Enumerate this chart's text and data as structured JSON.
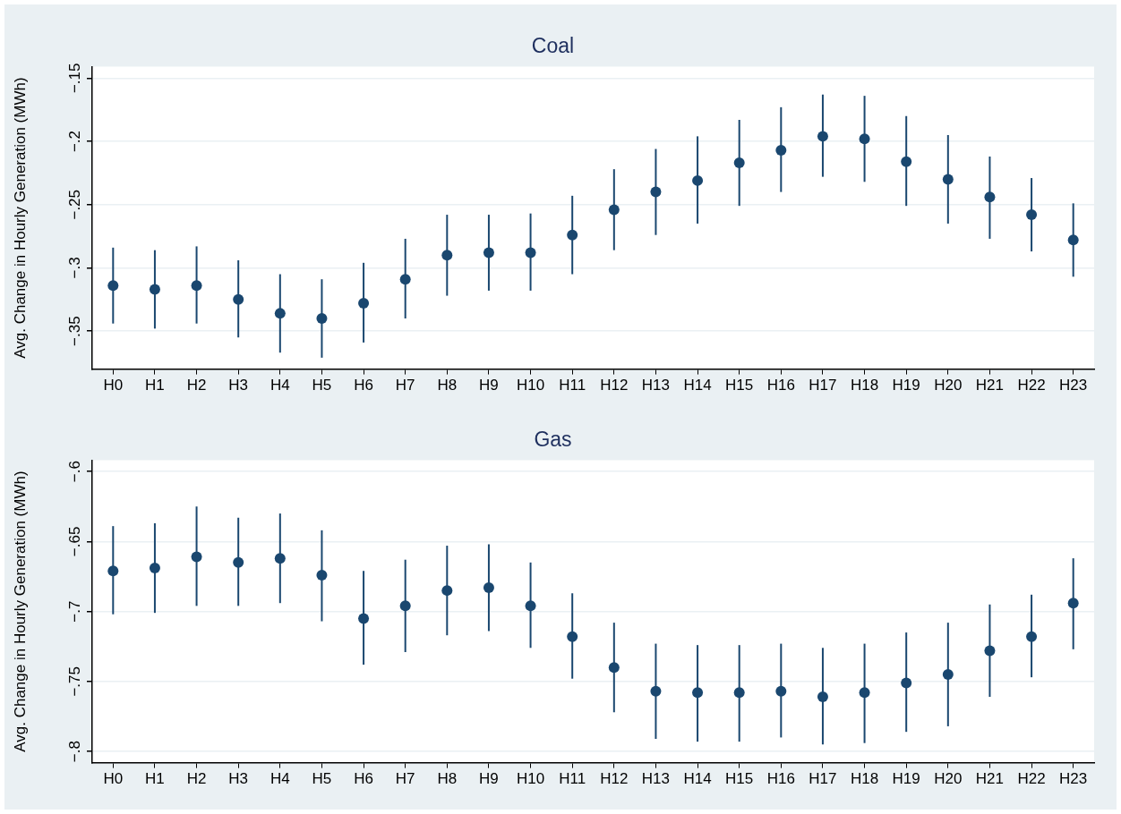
{
  "chart_data": [
    {
      "type": "scatter",
      "title": "Coal",
      "ylabel": "Avg. Change in Hourly Generation (MWh)",
      "categories": [
        "H0",
        "H1",
        "H2",
        "H3",
        "H4",
        "H5",
        "H6",
        "H7",
        "H8",
        "H9",
        "H10",
        "H11",
        "H12",
        "H13",
        "H14",
        "H15",
        "H16",
        "H17",
        "H18",
        "H19",
        "H20",
        "H21",
        "H22",
        "H23"
      ],
      "values": [
        -0.314,
        -0.317,
        -0.314,
        -0.325,
        -0.336,
        -0.34,
        -0.328,
        -0.309,
        -0.29,
        -0.288,
        -0.288,
        -0.274,
        -0.254,
        -0.24,
        -0.231,
        -0.217,
        -0.207,
        -0.196,
        -0.198,
        -0.216,
        -0.23,
        -0.244,
        -0.258,
        -0.278
      ],
      "errors": [
        [
          -0.344,
          -0.284
        ],
        [
          -0.348,
          -0.286
        ],
        [
          -0.344,
          -0.283
        ],
        [
          -0.355,
          -0.294
        ],
        [
          -0.367,
          -0.305
        ],
        [
          -0.371,
          -0.309
        ],
        [
          -0.359,
          -0.296
        ],
        [
          -0.34,
          -0.277
        ],
        [
          -0.322,
          -0.258
        ],
        [
          -0.318,
          -0.258
        ],
        [
          -0.318,
          -0.257
        ],
        [
          -0.305,
          -0.243
        ],
        [
          -0.286,
          -0.222
        ],
        [
          -0.274,
          -0.206
        ],
        [
          -0.265,
          -0.196
        ],
        [
          -0.251,
          -0.183
        ],
        [
          -0.24,
          -0.173
        ],
        [
          -0.228,
          -0.163
        ],
        [
          -0.232,
          -0.164
        ],
        [
          -0.251,
          -0.18
        ],
        [
          -0.265,
          -0.195
        ],
        [
          -0.277,
          -0.212
        ],
        [
          -0.287,
          -0.229
        ],
        [
          -0.307,
          -0.249
        ]
      ],
      "color": "#1a476f",
      "marker": "circle",
      "grid": "y",
      "ylim": [
        -0.38,
        -0.141
      ],
      "yticks": [
        {
          "value": -0.35,
          "label": "−.35"
        },
        {
          "value": -0.3,
          "label": "−.3"
        },
        {
          "value": -0.25,
          "label": "−.25"
        },
        {
          "value": -0.2,
          "label": "−.2"
        },
        {
          "value": -0.15,
          "label": "−.15"
        }
      ]
    },
    {
      "type": "scatter",
      "title": "Gas",
      "ylabel": "Avg. Change in Hourly Generation (MWh)",
      "categories": [
        "H0",
        "H1",
        "H2",
        "H3",
        "H4",
        "H5",
        "H6",
        "H7",
        "H8",
        "H9",
        "H10",
        "H11",
        "H12",
        "H13",
        "H14",
        "H15",
        "H16",
        "H17",
        "H18",
        "H19",
        "H20",
        "H21",
        "H22",
        "H23"
      ],
      "values": [
        -0.671,
        -0.669,
        -0.661,
        -0.665,
        -0.662,
        -0.674,
        -0.705,
        -0.696,
        -0.685,
        -0.683,
        -0.696,
        -0.718,
        -0.74,
        -0.757,
        -0.758,
        -0.758,
        -0.757,
        -0.761,
        -0.758,
        -0.751,
        -0.745,
        -0.728,
        -0.718,
        -0.694
      ],
      "errors": [
        [
          -0.702,
          -0.639
        ],
        [
          -0.701,
          -0.637
        ],
        [
          -0.696,
          -0.625
        ],
        [
          -0.696,
          -0.633
        ],
        [
          -0.694,
          -0.63
        ],
        [
          -0.707,
          -0.642
        ],
        [
          -0.738,
          -0.671
        ],
        [
          -0.729,
          -0.663
        ],
        [
          -0.717,
          -0.653
        ],
        [
          -0.714,
          -0.652
        ],
        [
          -0.726,
          -0.665
        ],
        [
          -0.748,
          -0.687
        ],
        [
          -0.772,
          -0.708
        ],
        [
          -0.791,
          -0.723
        ],
        [
          -0.793,
          -0.724
        ],
        [
          -0.793,
          -0.724
        ],
        [
          -0.79,
          -0.723
        ],
        [
          -0.795,
          -0.726
        ],
        [
          -0.794,
          -0.723
        ],
        [
          -0.786,
          -0.715
        ],
        [
          -0.782,
          -0.708
        ],
        [
          -0.761,
          -0.695
        ],
        [
          -0.747,
          -0.688
        ],
        [
          -0.727,
          -0.662
        ]
      ],
      "color": "#1a476f",
      "marker": "circle",
      "grid": "y",
      "ylim": [
        -0.808,
        -0.592
      ],
      "yticks": [
        {
          "value": -0.8,
          "label": "−.8"
        },
        {
          "value": -0.75,
          "label": "−.75"
        },
        {
          "value": -0.7,
          "label": "−.7"
        },
        {
          "value": -0.65,
          "label": "−.65"
        },
        {
          "value": -0.6,
          "label": "−.6"
        }
      ]
    }
  ]
}
